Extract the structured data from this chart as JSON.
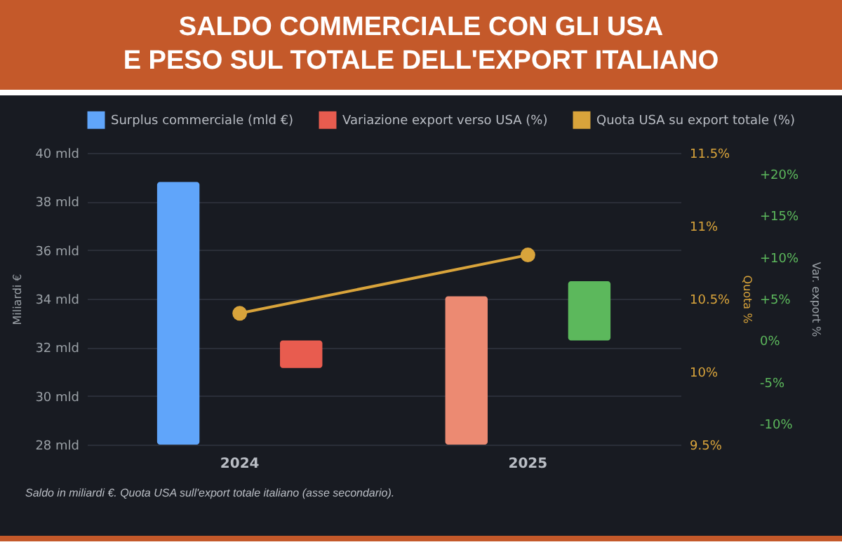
{
  "chart_data": {
    "type": "bar",
    "title": "SALDO COMMERCIALE CON GLI USA\nE PESO SUL TOTALE DELL'EXPORT ITALIANO",
    "categories": [
      "2024",
      "2025"
    ],
    "ylabel": "Miliardi €",
    "y2label": "Quota %",
    "y3label": "Var. export %",
    "ylim": [
      28,
      40
    ],
    "yticks": [
      {
        "value": 28,
        "label": "28 mld"
      },
      {
        "value": 30,
        "label": "30 mld"
      },
      {
        "value": 32,
        "label": "32 mld"
      },
      {
        "value": 34,
        "label": "34 mld"
      },
      {
        "value": 36,
        "label": "36 mld"
      },
      {
        "value": 38,
        "label": "38 mld"
      },
      {
        "value": 40,
        "label": "40 mld"
      }
    ],
    "y2lim": [
      9.5,
      11.5
    ],
    "y2ticks": [
      {
        "value": 9.5,
        "label": "9.5%"
      },
      {
        "value": 10,
        "label": "10%"
      },
      {
        "value": 10.5,
        "label": "10.5%"
      },
      {
        "value": 11,
        "label": "11%"
      },
      {
        "value": 11.5,
        "label": "11.5%"
      }
    ],
    "y3lim": [
      -12.5,
      22.5
    ],
    "y3ticks": [
      {
        "value": -10,
        "label": "-10%"
      },
      {
        "value": -5,
        "label": "-5%"
      },
      {
        "value": 0,
        "label": "0%"
      },
      {
        "value": 5,
        "label": "+5%"
      },
      {
        "value": 10,
        "label": "+10%"
      },
      {
        "value": 15,
        "label": "+15%"
      },
      {
        "value": 20,
        "label": "+20%"
      }
    ],
    "series": [
      {
        "name": "Surplus commerciale (mld €)",
        "color": "#60a5fa",
        "colors": [
          "#60a5fa",
          "#ec8a72"
        ],
        "values": [
          38.8,
          34.1
        ]
      },
      {
        "name": "Variazione export verso USA (%)",
        "axis": "y3",
        "color": "#e85c4f",
        "colors": [
          "#e85c4f",
          "#5cb85c"
        ],
        "values": [
          -3.3,
          7.1
        ]
      },
      {
        "name": "Quota USA su export totale (%)",
        "type": "line",
        "axis": "y2",
        "color": "#d9a43b",
        "values": [
          10.4,
          10.8
        ]
      }
    ],
    "marker": "circle",
    "grid": "y",
    "legend": "top",
    "annotations": [
      "Saldo in miliardi €. Quota USA sull'export totale italiano (asse secondario)."
    ]
  }
}
